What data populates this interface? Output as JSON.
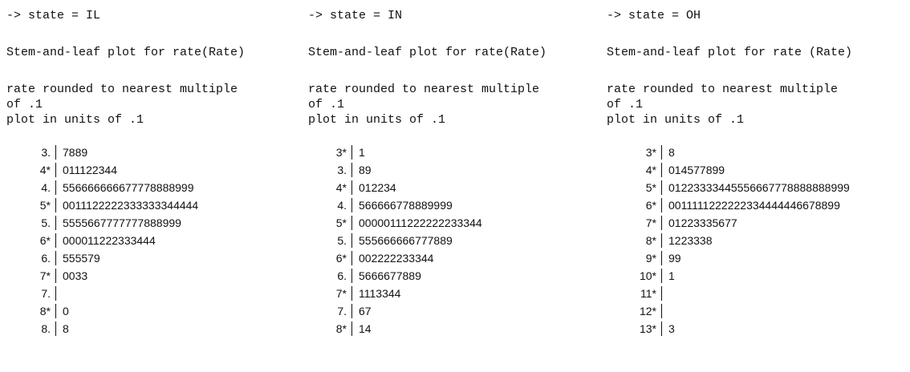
{
  "columns": [
    {
      "header": "-> state = IL",
      "title": "Stem-and-leaf plot for rate(Rate)",
      "notes": [
        "rate rounded to nearest multiple",
        "of .1",
        "plot in units of .1"
      ],
      "rows": [
        {
          "stem": "3.",
          "leaves": "7889"
        },
        {
          "stem": "4*",
          "leaves": "011122344"
        },
        {
          "stem": "4.",
          "leaves": "556666666677778888999"
        },
        {
          "stem": "5*",
          "leaves": "0011122222333333344444"
        },
        {
          "stem": "5.",
          "leaves": "5555667777777888999"
        },
        {
          "stem": "6*",
          "leaves": "000011222333444"
        },
        {
          "stem": "6.",
          "leaves": "555579"
        },
        {
          "stem": "7*",
          "leaves": "0033"
        },
        {
          "stem": "7."
        },
        {
          "stem": "8*",
          "leaves": "0"
        },
        {
          "stem": "8.",
          "leaves": "8"
        }
      ]
    },
    {
      "header": "-> state = IN",
      "title": "Stem-and-leaf plot for rate(Rate)",
      "notes": [
        "rate rounded to nearest multiple",
        "of .1",
        "plot in units of .1"
      ],
      "rows": [
        {
          "stem": "3*",
          "leaves": "1"
        },
        {
          "stem": "3.",
          "leaves": "89"
        },
        {
          "stem": "4*",
          "leaves": "012234"
        },
        {
          "stem": "4.",
          "leaves": "566666778889999"
        },
        {
          "stem": "5*",
          "leaves": "00000111222222233344"
        },
        {
          "stem": "5.",
          "leaves": "555666666777889"
        },
        {
          "stem": "6*",
          "leaves": "002222233344"
        },
        {
          "stem": "6.",
          "leaves": "5666677889"
        },
        {
          "stem": "7*",
          "leaves": "1113344"
        },
        {
          "stem": "7.",
          "leaves": "67"
        },
        {
          "stem": "8*",
          "leaves": "14"
        }
      ]
    },
    {
      "header": "-> state = OH",
      "title": "Stem-and-leaf plot for rate (Rate)",
      "notes": [
        "rate rounded to nearest multiple",
        "of .1",
        "plot in units of .1"
      ],
      "rows": [
        {
          "stem": "3*",
          "leaves": "8"
        },
        {
          "stem": "4*",
          "leaves": "014577899"
        },
        {
          "stem": "5*",
          "leaves": "01223333445556667778888888999"
        },
        {
          "stem": "6*",
          "leaves": "0011111222222334444446678899"
        },
        {
          "stem": "7*",
          "leaves": "01223335677"
        },
        {
          "stem": "8*",
          "leaves": "1223338"
        },
        {
          "stem": "9*",
          "leaves": "99"
        },
        {
          "stem": "10*",
          "leaves": "1"
        },
        {
          "stem": "11*"
        },
        {
          "stem": "12*"
        },
        {
          "stem": "13*",
          "leaves": "3"
        }
      ]
    }
  ]
}
